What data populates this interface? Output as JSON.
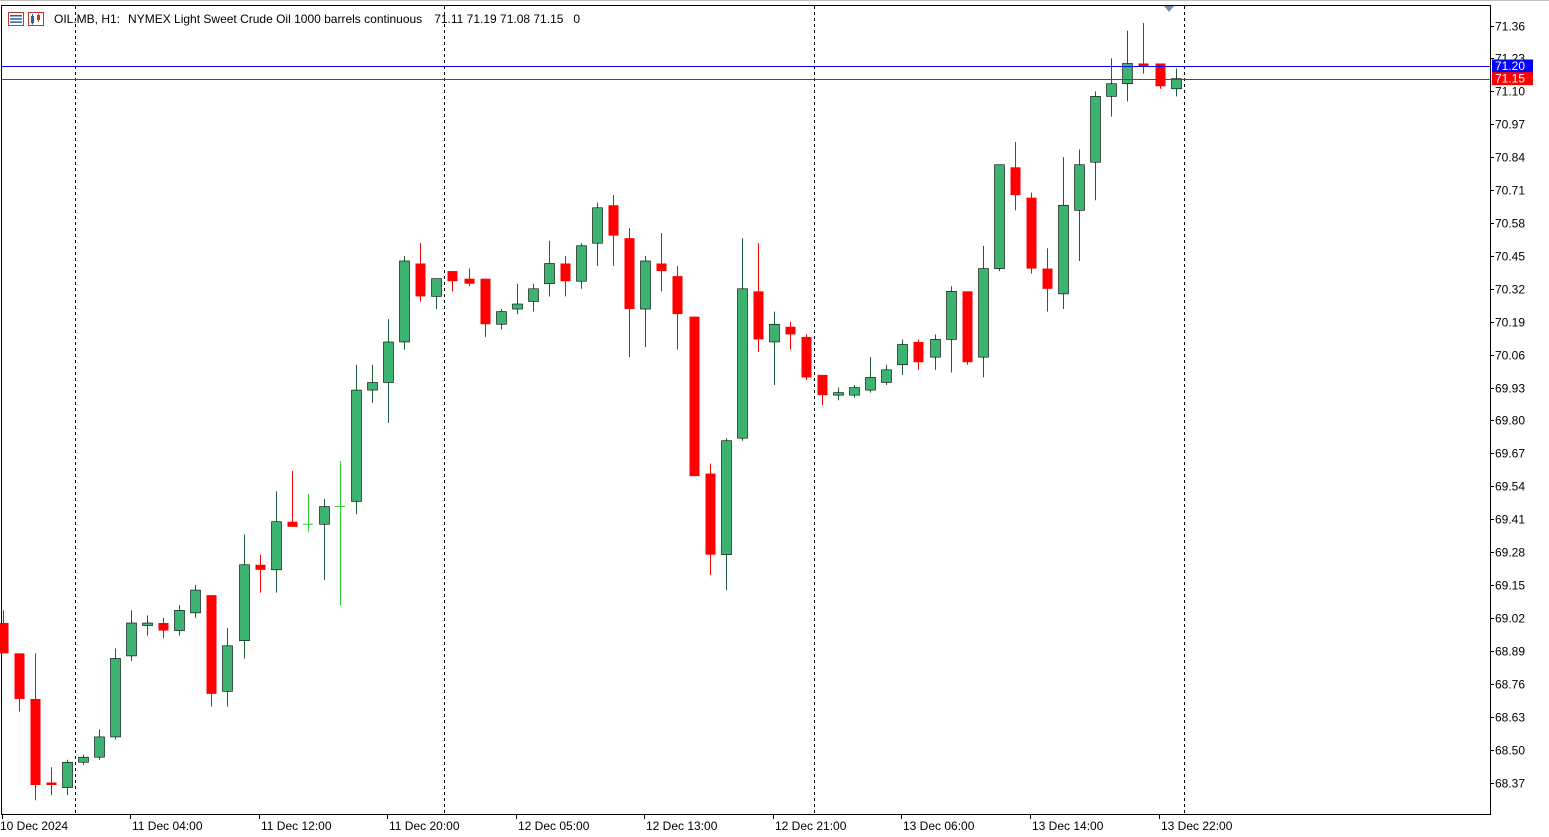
{
  "header": {
    "symbol": "OIL.MB, H1:",
    "description": "NYMEX Light Sweet Crude Oil 1000 barrels continuous",
    "ohlc": "71.11 71.19 71.08 71.15",
    "tick_volume": "0",
    "icons": [
      "chart-list-icon",
      "chart-settings-icon"
    ]
  },
  "colors": {
    "bull": "#3cb371",
    "bear": "#ff0000",
    "doji": "#32cd32",
    "bid_line": "#ff0000",
    "ask_line": "#0000ff",
    "grid": "#000000",
    "background": "#ffffff"
  },
  "price_tags": {
    "ask": "71.20",
    "bid": "71.15"
  },
  "chart_data": {
    "type": "candlestick",
    "timeframe": "H1",
    "ylim": [
      68.28,
      71.43
    ],
    "y_ticks": [
      "71.36",
      "71.23",
      "71.10",
      "70.97",
      "70.84",
      "70.71",
      "70.58",
      "70.45",
      "70.32",
      "70.19",
      "70.06",
      "69.93",
      "69.80",
      "69.67",
      "69.54",
      "69.41",
      "69.28",
      "69.15",
      "69.02",
      "68.89",
      "68.76",
      "68.63",
      "68.50",
      "68.37"
    ],
    "x_labels": [
      "10 Dec 2024",
      "11 Dec 04:00",
      "11 Dec 12:00",
      "11 Dec 20:00",
      "12 Dec 05:00",
      "12 Dec 13:00",
      "12 Dec 21:00",
      "13 Dec 06:00",
      "13 Dec 14:00",
      "13 Dec 22:00"
    ],
    "period_separators": [
      "11 Dec",
      "12 Dec",
      "13 Dec",
      "14 Dec"
    ],
    "ask": 71.2,
    "bid": 71.15,
    "candles": [
      {
        "o": 69.0,
        "h": 69.05,
        "l": 68.88,
        "c": 68.88
      },
      {
        "o": 68.88,
        "h": 68.88,
        "l": 68.65,
        "c": 68.7
      },
      {
        "o": 68.7,
        "h": 68.88,
        "l": 68.3,
        "c": 68.36
      },
      {
        "o": 68.37,
        "h": 68.43,
        "l": 68.32,
        "c": 68.36
      },
      {
        "o": 68.35,
        "h": 68.46,
        "l": 68.32,
        "c": 68.45
      },
      {
        "o": 68.45,
        "h": 68.48,
        "l": 68.44,
        "c": 68.47
      },
      {
        "o": 68.47,
        "h": 68.58,
        "l": 68.46,
        "c": 68.55
      },
      {
        "o": 68.55,
        "h": 68.9,
        "l": 68.54,
        "c": 68.86
      },
      {
        "o": 68.87,
        "h": 69.05,
        "l": 68.85,
        "c": 69.0
      },
      {
        "o": 68.99,
        "h": 69.03,
        "l": 68.95,
        "c": 69.0
      },
      {
        "o": 69.0,
        "h": 69.02,
        "l": 68.94,
        "c": 68.97
      },
      {
        "o": 68.97,
        "h": 69.07,
        "l": 68.95,
        "c": 69.05
      },
      {
        "o": 69.04,
        "h": 69.15,
        "l": 69.02,
        "c": 69.13
      },
      {
        "o": 69.11,
        "h": 69.11,
        "l": 68.67,
        "c": 68.72
      },
      {
        "o": 68.73,
        "h": 68.98,
        "l": 68.67,
        "c": 68.91
      },
      {
        "o": 68.93,
        "h": 69.35,
        "l": 68.86,
        "c": 69.23
      },
      {
        "o": 69.23,
        "h": 69.27,
        "l": 69.12,
        "c": 69.21
      },
      {
        "o": 69.21,
        "h": 69.52,
        "l": 69.12,
        "c": 69.4
      },
      {
        "o": 69.4,
        "h": 69.6,
        "l": 69.38,
        "c": 69.38
      },
      {
        "o": 69.39,
        "h": 69.51,
        "l": 69.36,
        "c": 69.39
      },
      {
        "o": 69.39,
        "h": 69.49,
        "l": 69.17,
        "c": 69.46
      },
      {
        "o": 69.46,
        "h": 69.64,
        "l": 69.07,
        "c": 69.46
      },
      {
        "o": 69.48,
        "h": 70.02,
        "l": 69.43,
        "c": 69.92
      },
      {
        "o": 69.92,
        "h": 70.02,
        "l": 69.87,
        "c": 69.95
      },
      {
        "o": 69.95,
        "h": 70.2,
        "l": 69.79,
        "c": 70.11
      },
      {
        "o": 70.11,
        "h": 70.45,
        "l": 70.08,
        "c": 70.43
      },
      {
        "o": 70.42,
        "h": 70.5,
        "l": 70.27,
        "c": 70.29
      },
      {
        "o": 70.29,
        "h": 70.35,
        "l": 70.24,
        "c": 70.36
      },
      {
        "o": 70.39,
        "h": 70.39,
        "l": 70.31,
        "c": 70.35
      },
      {
        "o": 70.36,
        "h": 70.4,
        "l": 70.33,
        "c": 70.34
      },
      {
        "o": 70.36,
        "h": 70.36,
        "l": 70.13,
        "c": 70.18
      },
      {
        "o": 70.18,
        "h": 70.24,
        "l": 70.16,
        "c": 70.23
      },
      {
        "o": 70.24,
        "h": 70.34,
        "l": 70.22,
        "c": 70.26
      },
      {
        "o": 70.27,
        "h": 70.34,
        "l": 70.23,
        "c": 70.32
      },
      {
        "o": 70.34,
        "h": 70.51,
        "l": 70.29,
        "c": 70.42
      },
      {
        "o": 70.42,
        "h": 70.45,
        "l": 70.29,
        "c": 70.35
      },
      {
        "o": 70.35,
        "h": 70.5,
        "l": 70.32,
        "c": 70.49
      },
      {
        "o": 70.5,
        "h": 70.66,
        "l": 70.41,
        "c": 70.64
      },
      {
        "o": 70.65,
        "h": 70.69,
        "l": 70.41,
        "c": 70.53
      },
      {
        "o": 70.52,
        "h": 70.56,
        "l": 70.05,
        "c": 70.24
      },
      {
        "o": 70.24,
        "h": 70.45,
        "l": 70.09,
        "c": 70.43
      },
      {
        "o": 70.42,
        "h": 70.54,
        "l": 70.31,
        "c": 70.39
      },
      {
        "o": 70.37,
        "h": 70.41,
        "l": 70.08,
        "c": 70.22
      },
      {
        "o": 70.21,
        "h": 70.21,
        "l": 69.58,
        "c": 69.58
      },
      {
        "o": 69.59,
        "h": 69.63,
        "l": 69.19,
        "c": 69.27
      },
      {
        "o": 69.27,
        "h": 69.73,
        "l": 69.13,
        "c": 69.72
      },
      {
        "o": 69.73,
        "h": 70.52,
        "l": 69.72,
        "c": 70.32
      },
      {
        "o": 70.31,
        "h": 70.5,
        "l": 70.07,
        "c": 70.12
      },
      {
        "o": 70.11,
        "h": 70.23,
        "l": 69.94,
        "c": 70.18
      },
      {
        "o": 70.17,
        "h": 70.19,
        "l": 70.08,
        "c": 70.14
      },
      {
        "o": 70.13,
        "h": 70.14,
        "l": 69.96,
        "c": 69.97
      },
      {
        "o": 69.98,
        "h": 69.98,
        "l": 69.86,
        "c": 69.9
      },
      {
        "o": 69.9,
        "h": 69.93,
        "l": 69.88,
        "c": 69.91
      },
      {
        "o": 69.9,
        "h": 69.94,
        "l": 69.89,
        "c": 69.93
      },
      {
        "o": 69.92,
        "h": 70.05,
        "l": 69.91,
        "c": 69.97
      },
      {
        "o": 69.95,
        "h": 70.02,
        "l": 69.94,
        "c": 70.0
      },
      {
        "o": 70.02,
        "h": 70.12,
        "l": 69.98,
        "c": 70.1
      },
      {
        "o": 70.11,
        "h": 70.12,
        "l": 70.0,
        "c": 70.03
      },
      {
        "o": 70.05,
        "h": 70.14,
        "l": 70.0,
        "c": 70.12
      },
      {
        "o": 70.12,
        "h": 70.33,
        "l": 69.99,
        "c": 70.31
      },
      {
        "o": 70.31,
        "h": 70.31,
        "l": 70.02,
        "c": 70.03
      },
      {
        "o": 70.05,
        "h": 70.49,
        "l": 69.97,
        "c": 70.4
      },
      {
        "o": 70.4,
        "h": 70.81,
        "l": 70.39,
        "c": 70.81
      },
      {
        "o": 70.8,
        "h": 70.9,
        "l": 70.63,
        "c": 70.69
      },
      {
        "o": 70.68,
        "h": 70.7,
        "l": 70.38,
        "c": 70.4
      },
      {
        "o": 70.4,
        "h": 70.48,
        "l": 70.23,
        "c": 70.32
      },
      {
        "o": 70.3,
        "h": 70.84,
        "l": 70.24,
        "c": 70.65
      },
      {
        "o": 70.63,
        "h": 70.87,
        "l": 70.43,
        "c": 70.81
      },
      {
        "o": 70.82,
        "h": 71.1,
        "l": 70.67,
        "c": 71.08
      },
      {
        "o": 71.08,
        "h": 71.23,
        "l": 71.0,
        "c": 71.13
      },
      {
        "o": 71.13,
        "h": 71.34,
        "l": 71.06,
        "c": 71.21
      },
      {
        "o": 71.21,
        "h": 71.37,
        "l": 71.17,
        "c": 71.2
      },
      {
        "o": 71.21,
        "h": 71.21,
        "l": 71.11,
        "c": 71.12
      },
      {
        "o": 71.11,
        "h": 71.19,
        "l": 71.08,
        "c": 71.15
      }
    ]
  }
}
